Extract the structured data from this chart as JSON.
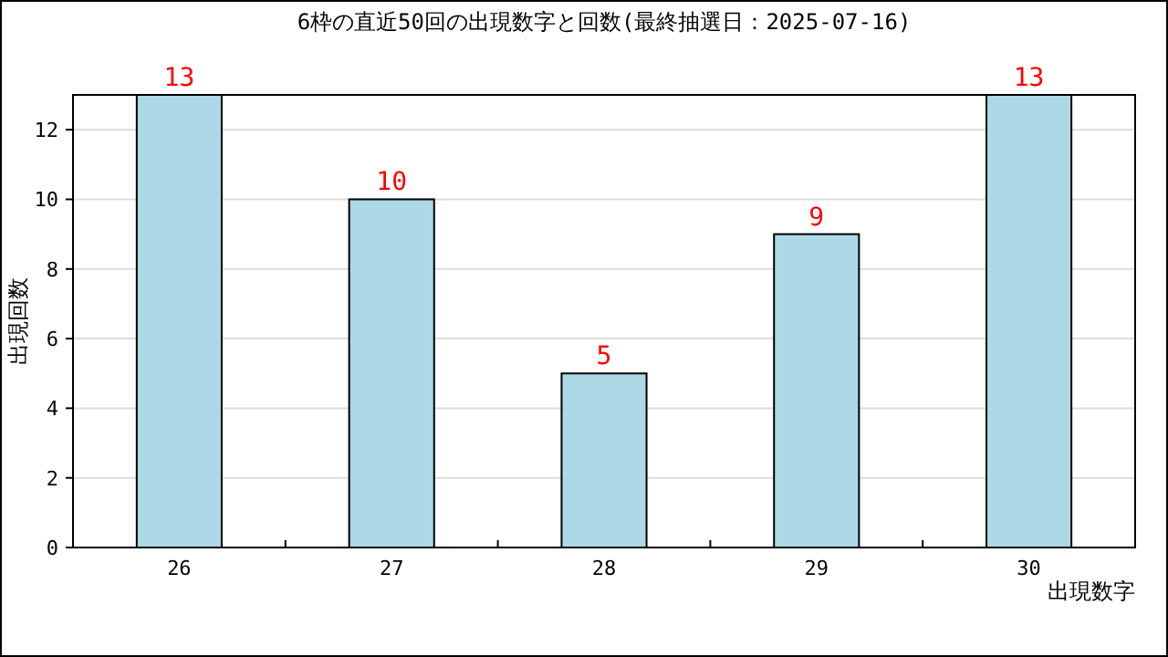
{
  "chart_data": {
    "type": "bar",
    "title": "6枠の直近50回の出現数字と回数(最終抽選日：2025-07-16)",
    "xlabel": "出現数字",
    "ylabel": "出現回数",
    "categories": [
      "26",
      "27",
      "28",
      "29",
      "30"
    ],
    "values": [
      13,
      10,
      5,
      9,
      13
    ],
    "color": "#add8e6",
    "ylim": [
      0,
      13
    ],
    "yticks": [
      0,
      2,
      4,
      6,
      8,
      10,
      12
    ],
    "grid": "y",
    "data_labels": true
  }
}
